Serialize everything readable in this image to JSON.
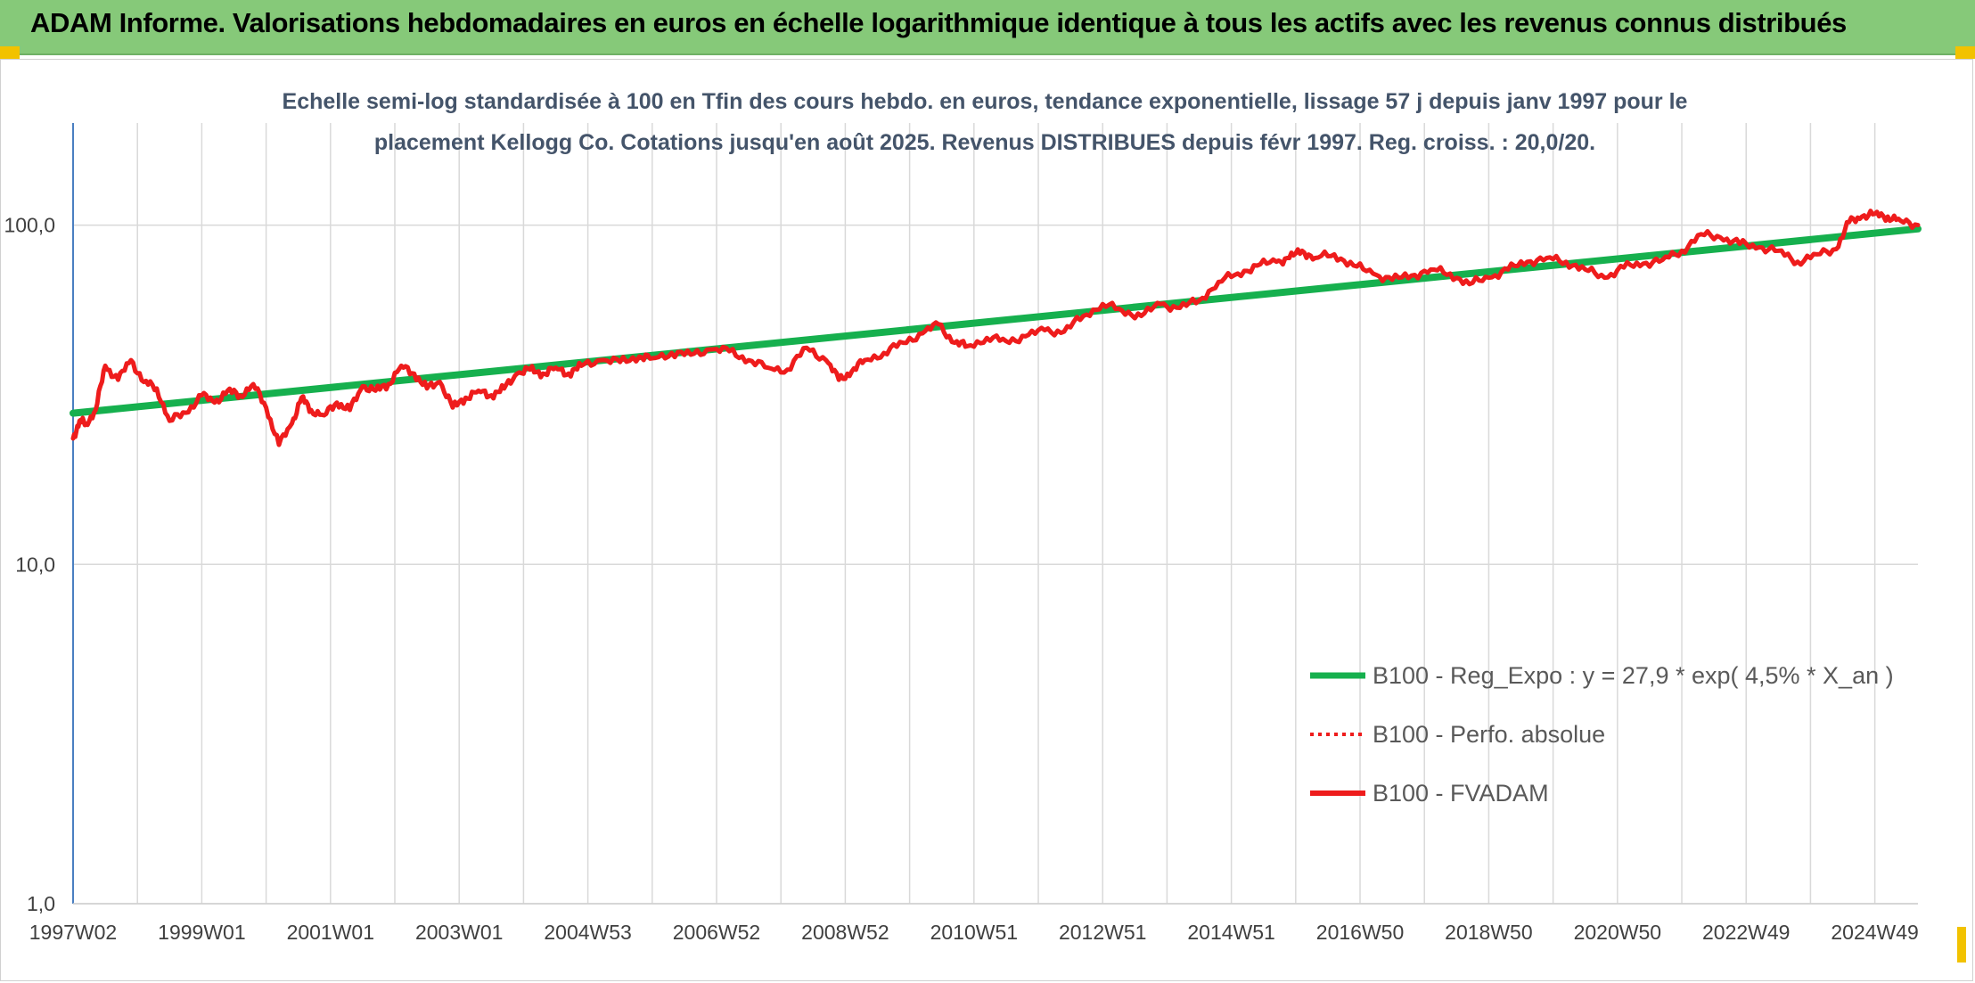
{
  "header": {
    "title": "ADAM Informe. Valorisations hebdomadaires en euros en échelle logarithmique identique à tous les actifs avec les revenus connus distribués"
  },
  "colors": {
    "title_bar": "#86c979",
    "series_regression": "#16b04e",
    "series_fvadam": "#ee1c1c",
    "gridline": "#d9d9d9",
    "axis": "#4a7fc1"
  },
  "chart_data": {
    "type": "line",
    "subtitle_line1": "Echelle semi-log standardisée à 100 en Tfin des cours hebdo. en euros, tendance exponentielle, lissage 57 j depuis janv 1997 pour le",
    "subtitle_line2": "placement Kellogg Co. Cotations jusqu'en août 2025. Revenus DISTRIBUES depuis févr 1997. Reg. croiss. : 20,0/20.",
    "y_scale": "log",
    "ylim": [
      1,
      200
    ],
    "y_ticks": [
      "1,0",
      "10,0",
      "100,0"
    ],
    "y_tick_values": [
      1,
      10,
      100
    ],
    "xlim": [
      1997.0,
      2025.67
    ],
    "x_tick_labels": [
      "1997W02",
      "1999W01",
      "2001W01",
      "2003W01",
      "2004W53",
      "2006W52",
      "2008W52",
      "2010W51",
      "2012W51",
      "2014W51",
      "2016W50",
      "2018W50",
      "2020W50",
      "2022W49",
      "2024W49"
    ],
    "x_tick_years": [
      1997.0,
      1999.0,
      2001.0,
      2003.0,
      2005.0,
      2007.0,
      2009.0,
      2011.0,
      2013.0,
      2015.0,
      2017.0,
      2019.0,
      2021.0,
      2023.0,
      2025.0
    ],
    "grid": true,
    "legend_position": "bottom-right",
    "legend": [
      {
        "label": "B100 - Reg_Expo : y = 27,9 * exp( 4,5% *  X_an )",
        "style": "solid-green"
      },
      {
        "label": "B100 - Perfo. absolue",
        "style": "dotted-red"
      },
      {
        "label": "B100 - FVADAM",
        "style": "solid-red"
      }
    ],
    "series": [
      {
        "name": "B100 - Reg_Expo : y = 27,9 * exp( 4,5% *  X_an )",
        "x": [
          1997.0,
          2025.67
        ],
        "y": [
          27.9,
          97.5
        ]
      },
      {
        "name": "B100 - FVADAM",
        "x": [
          1997.0,
          1997.1,
          1997.2,
          1997.35,
          1997.5,
          1997.7,
          1997.9,
          1998.1,
          1998.3,
          1998.5,
          1998.75,
          1999.0,
          1999.2,
          1999.4,
          1999.6,
          1999.8,
          2000.0,
          2000.2,
          2000.4,
          2000.55,
          2000.7,
          2000.9,
          2001.1,
          2001.3,
          2001.5,
          2001.7,
          2001.9,
          2002.1,
          2002.3,
          2002.5,
          2002.7,
          2002.9,
          2003.1,
          2003.3,
          2003.5,
          2003.7,
          2003.9,
          2004.1,
          2004.3,
          2004.5,
          2004.7,
          2004.9,
          2005.2,
          2005.5,
          2005.8,
          2006.0,
          2006.3,
          2006.6,
          2006.9,
          2007.2,
          2007.5,
          2007.8,
          2008.1,
          2008.4,
          2008.7,
          2008.9,
          2009.1,
          2009.3,
          2009.6,
          2009.9,
          2010.2,
          2010.45,
          2010.7,
          2010.9,
          2011.2,
          2011.5,
          2011.8,
          2012.1,
          2012.4,
          2012.7,
          2013.0,
          2013.3,
          2013.6,
          2013.9,
          2014.2,
          2014.5,
          2014.8,
          2015.1,
          2015.4,
          2015.7,
          2015.9,
          2016.1,
          2016.3,
          2016.6,
          2016.9,
          2017.2,
          2017.5,
          2017.8,
          2018.1,
          2018.4,
          2018.7,
          2019.0,
          2019.3,
          2019.6,
          2019.9,
          2020.2,
          2020.5,
          2020.8,
          2021.1,
          2021.4,
          2021.7,
          2022.0,
          2022.3,
          2022.6,
          2022.9,
          2023.2,
          2023.5,
          2023.8,
          2024.1,
          2024.4,
          2024.6,
          2024.8,
          2025.0,
          2025.2,
          2025.4,
          2025.67
        ],
        "y": [
          23.5,
          26.5,
          26.0,
          28.5,
          38.5,
          35.0,
          40.0,
          34.5,
          33.0,
          26.5,
          28.0,
          31.5,
          30.0,
          32.5,
          31.5,
          34.0,
          29.0,
          22.5,
          26.0,
          31.0,
          28.5,
          27.5,
          30.0,
          28.5,
          33.5,
          32.5,
          34.0,
          38.5,
          36.5,
          33.0,
          34.5,
          29.0,
          31.0,
          32.5,
          31.5,
          33.0,
          36.5,
          37.5,
          36.5,
          38.0,
          36.5,
          38.5,
          40.0,
          39.5,
          41.0,
          40.5,
          42.0,
          41.5,
          43.0,
          42.5,
          40.0,
          38.0,
          37.5,
          43.5,
          40.0,
          35.0,
          37.0,
          40.0,
          42.0,
          45.0,
          48.0,
          51.0,
          45.0,
          44.0,
          46.5,
          45.5,
          47.0,
          49.0,
          48.5,
          54.0,
          58.5,
          56.0,
          54.0,
          58.5,
          57.0,
          60.0,
          68.0,
          72.0,
          76.0,
          78.0,
          80.0,
          84.0,
          80.0,
          82.0,
          76.0,
          72.0,
          69.0,
          71.0,
          74.0,
          72.0,
          67.0,
          70.0,
          74.0,
          78.0,
          80.0,
          78.0,
          74.0,
          70.0,
          75.0,
          77.0,
          79.0,
          84.0,
          94.0,
          92.0,
          88.0,
          86.0,
          84.0,
          78.0,
          82.0,
          85.0,
          102.0,
          106.0,
          108.0,
          106.0,
          103.0,
          100.0
        ]
      }
    ]
  }
}
